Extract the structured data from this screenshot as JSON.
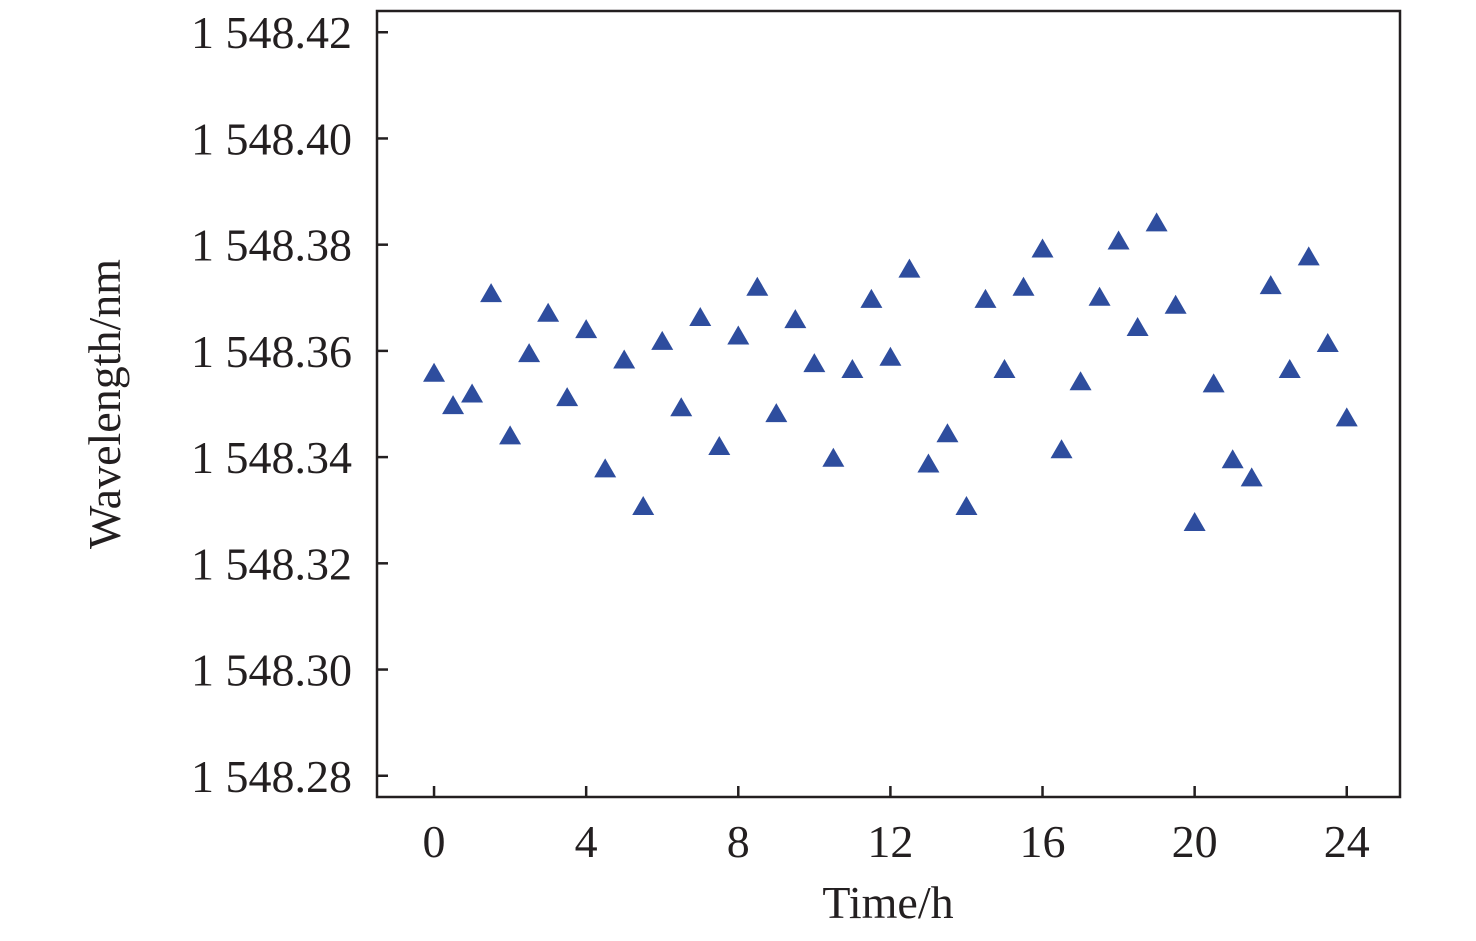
{
  "chart_data": {
    "type": "scatter",
    "xlabel": "Time/h",
    "ylabel": "Wavelength/nm",
    "xlim": [
      -1.5,
      25.4
    ],
    "ylim": [
      1548.276,
      1548.424
    ],
    "x_ticks": [
      0,
      4,
      8,
      12,
      16,
      20,
      24
    ],
    "x_tick_labels": [
      "0",
      "4",
      "8",
      "12",
      "16",
      "20",
      "24"
    ],
    "y_ticks": [
      1548.28,
      1548.3,
      1548.32,
      1548.34,
      1548.36,
      1548.38,
      1548.4,
      1548.42
    ],
    "y_tick_labels": [
      "1 548.28",
      "1 548.30",
      "1 548.32",
      "1 548.34",
      "1 548.36",
      "1 548.38",
      "1 548.40",
      "1 548.42"
    ],
    "grid": false,
    "marker": "triangle-up",
    "marker_color": "#2e4d9e",
    "series": [
      {
        "x": [
          0,
          0.5,
          1,
          1.5,
          2,
          2.5,
          3,
          3.5,
          4,
          4.5,
          5,
          5.5,
          6,
          6.5,
          7,
          7.5,
          8,
          8.5,
          9,
          9.5,
          10,
          10.5,
          11,
          11.5,
          12,
          12.5,
          13,
          13.5,
          14,
          14.5,
          15,
          15.5,
          16,
          16.5,
          17,
          17.5,
          18,
          18.5,
          19,
          19.5,
          20,
          20.5,
          21,
          21.5,
          22,
          22.5,
          23,
          23.5,
          24
        ],
        "y": [
          1548.3557,
          1548.3496,
          1548.3518,
          1548.3707,
          1548.3439,
          1548.3594,
          1548.367,
          1548.3511,
          1548.3639,
          1548.3377,
          1548.3582,
          1548.3306,
          1548.3617,
          1548.3492,
          1548.3662,
          1548.3419,
          1548.3627,
          1548.3719,
          1548.3481,
          1548.3658,
          1548.3575,
          1548.3397,
          1548.3564,
          1548.3696,
          1548.3587,
          1548.3753,
          1548.3386,
          1548.3443,
          1548.3306,
          1548.3696,
          1548.3564,
          1548.3719,
          1548.3791,
          1548.3413,
          1548.3541,
          1548.37,
          1548.3806,
          1548.3643,
          1548.384,
          1548.3685,
          1548.3276,
          1548.3537,
          1548.3394,
          1548.336,
          1548.3722,
          1548.3564,
          1548.3776,
          1548.3613,
          1548.3473
        ]
      }
    ]
  }
}
